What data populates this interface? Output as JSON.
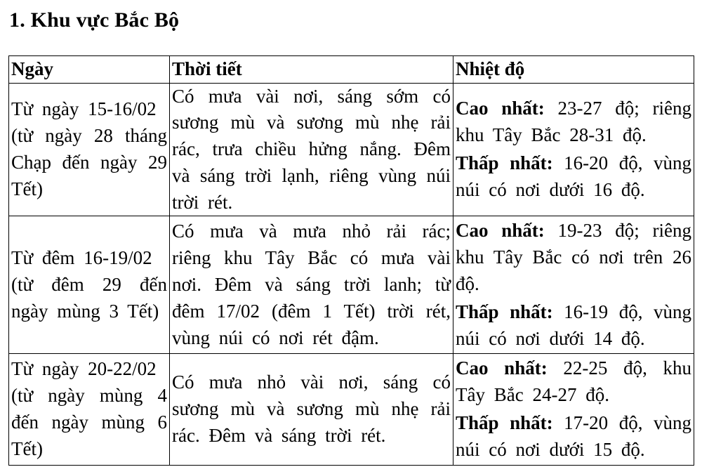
{
  "page": {
    "title": "1. Khu vực Bắc Bộ"
  },
  "table": {
    "headers": [
      "Ngày",
      "Thời tiết",
      "Nhiệt độ"
    ],
    "rows": [
      {
        "date": "Từ ngày 15-16/02",
        "lunar": "(từ ngày 28 tháng Chạp đến ngày 29 Tết)",
        "weather": "Có mưa vài nơi, sáng sớm có sương mù và sương mù nhẹ rải rác, trưa chiều hửng nắng. Đêm và sáng trời lạnh, riêng vùng núi trời rét.",
        "high_label": "Cao nhất:",
        "high": "23-27 độ; riêng khu Tây Bắc 28-31 độ.",
        "low_label": "Thấp nhất:",
        "low": "16-20 độ, vùng núi có nơi dưới 16 độ."
      },
      {
        "date": "Từ đêm 16-19/02",
        "lunar": "(từ đêm 29 đến ngày mùng 3 Tết)",
        "weather": "Có mưa và mưa nhỏ rải rác; riêng khu Tây Bắc có mưa vài nơi. Đêm và sáng trời lanh; từ đêm 17/02 (đêm 1 Tết) trời rét, vùng núi có nơi rét đậm.",
        "high_label": "Cao nhất:",
        "high": "19-23 độ; riêng khu Tây Bắc có nơi trên 26 độ.",
        "low_label": "Thấp nhất:",
        "low": "16-19 độ, vùng núi có nơi dưới 14 độ."
      },
      {
        "date": "Từ ngày 20-22/02",
        "lunar": "(từ ngày mùng 4 đến ngày mùng 6 Tết)",
        "weather": "Có mưa nhỏ vài nơi, sáng có sương mù và sương mù nhẹ rải rác. Đêm và sáng trời rét.",
        "high_label": "Cao nhất:",
        "high": "22-25 độ, khu Tây Bắc 24-27 độ.",
        "low_label": "Thấp nhất:",
        "low": "17-20 độ, vùng núi có nơi dưới 15 độ."
      }
    ]
  }
}
